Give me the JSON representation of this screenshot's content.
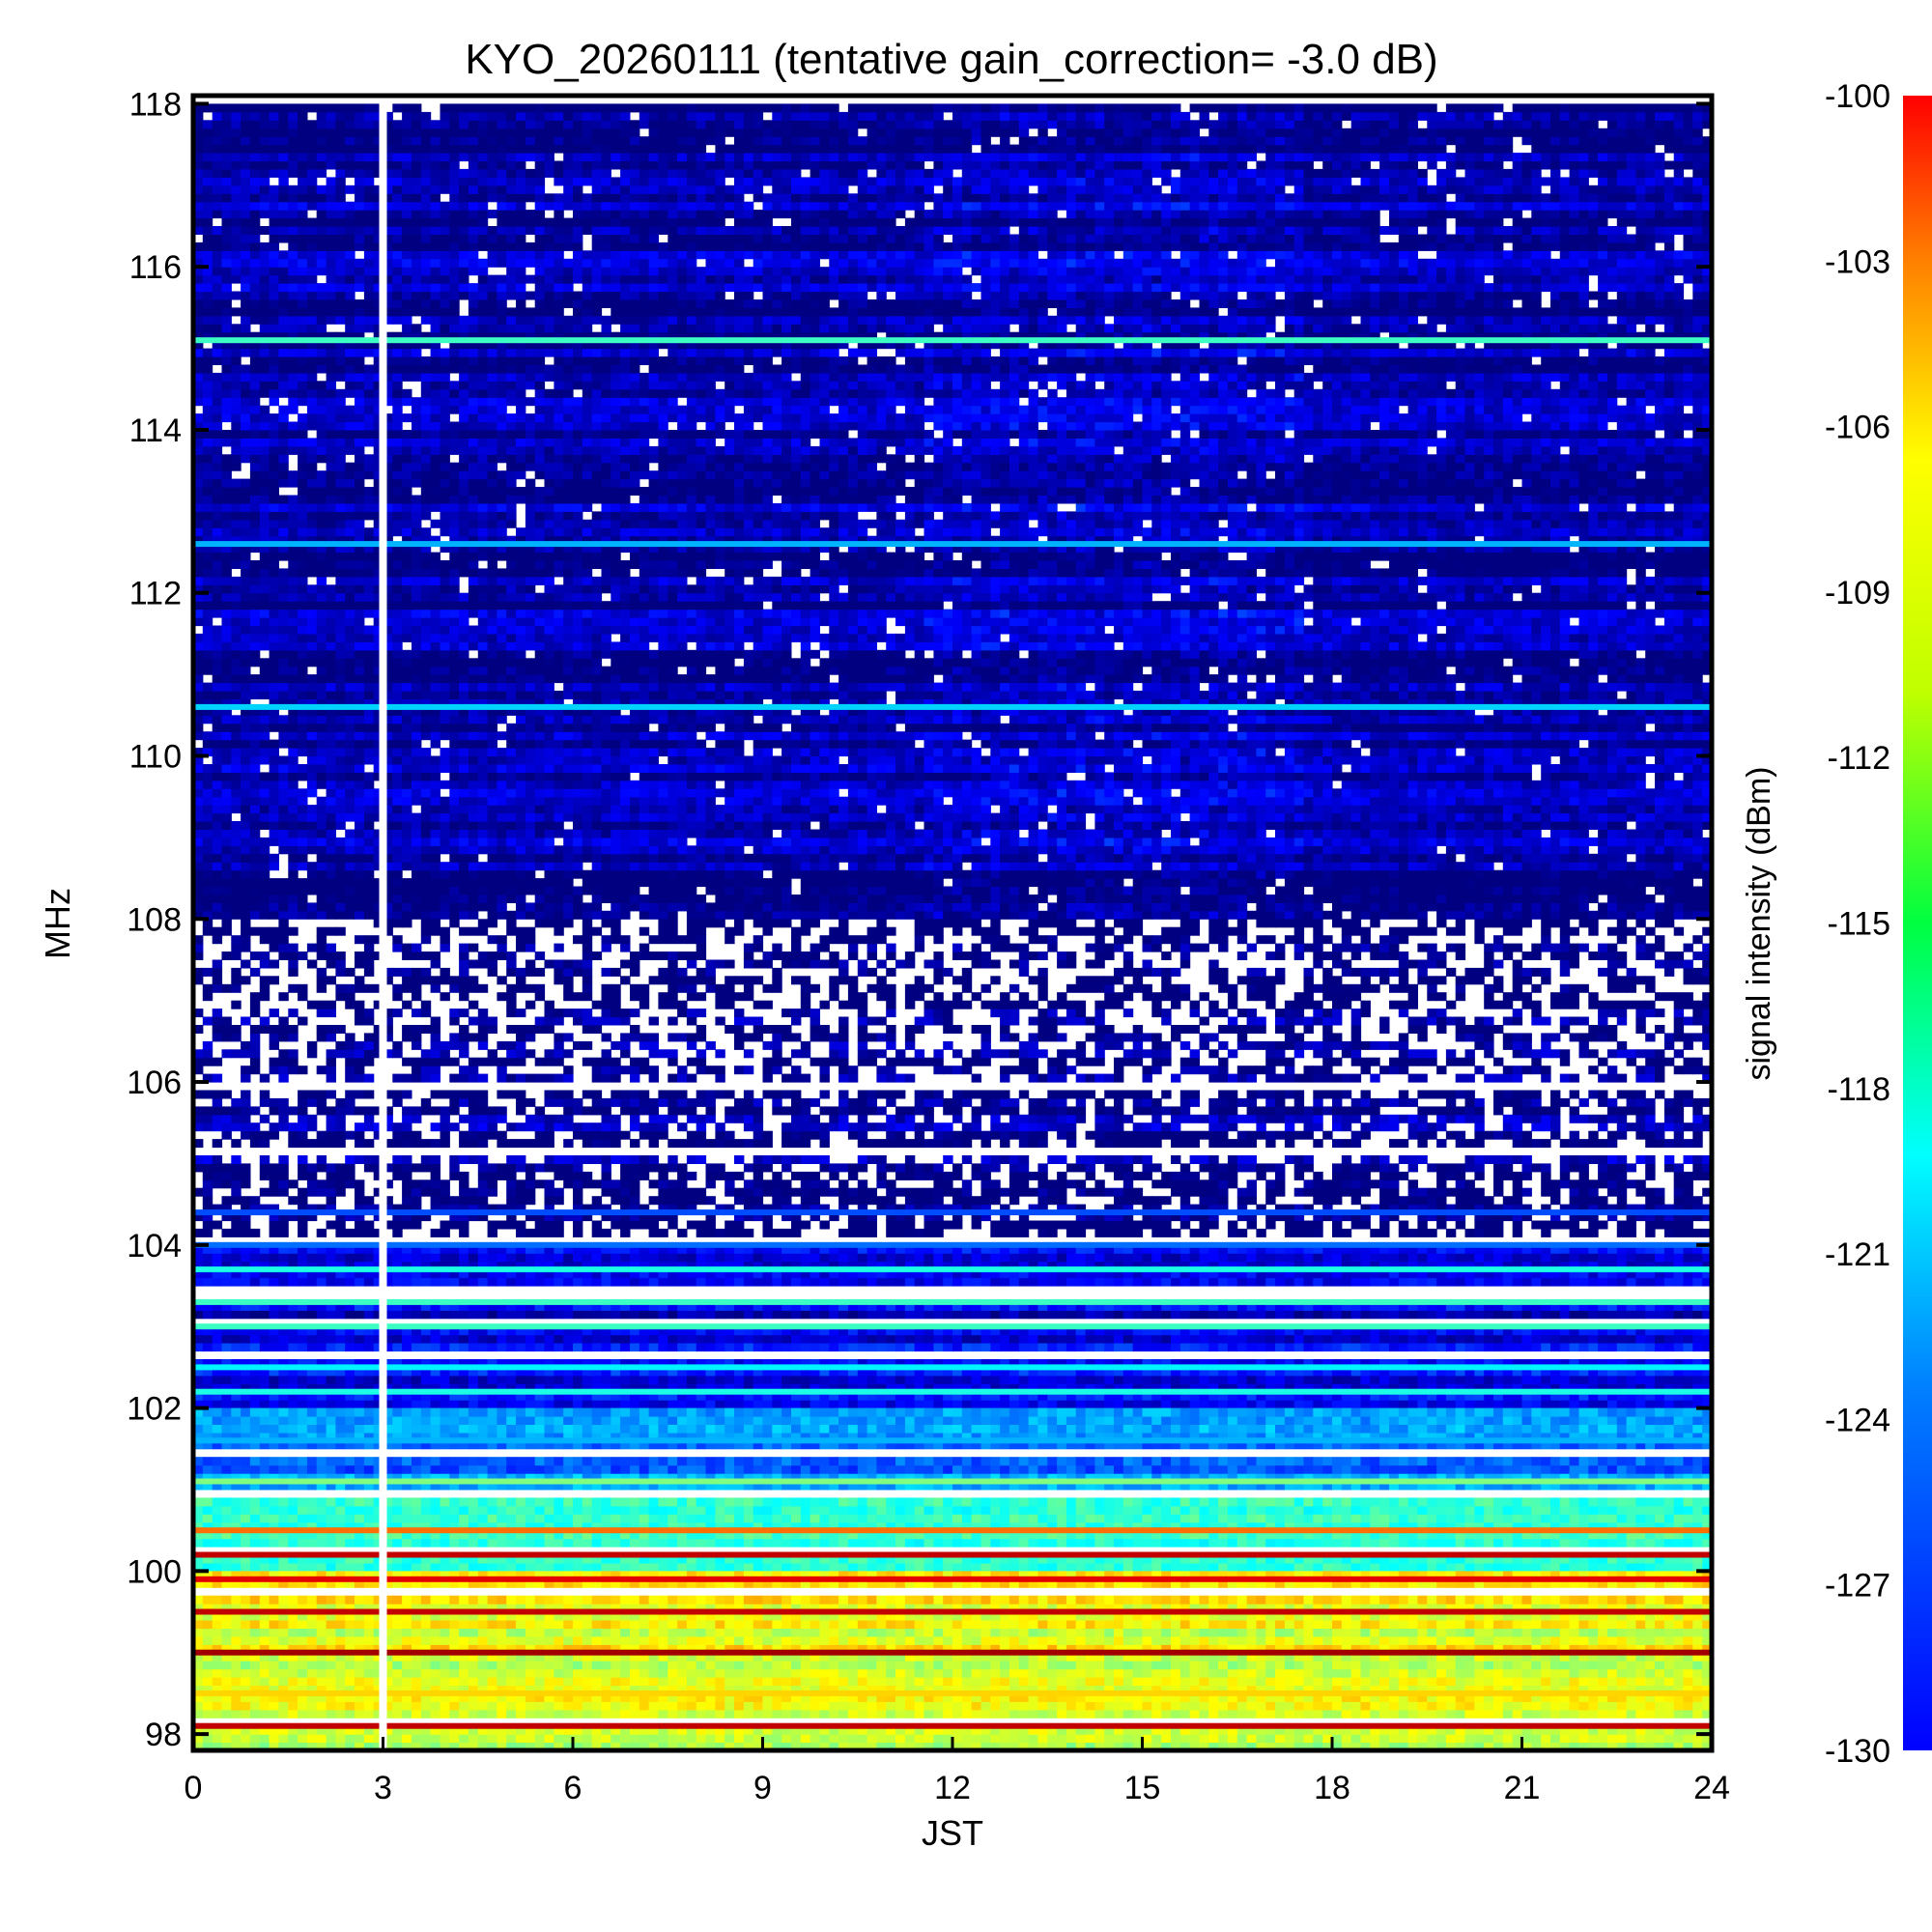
{
  "chart_data": {
    "type": "heatmap",
    "title": "KYO_20260111 (tentative gain_correction= -3.0 dB)",
    "xlabel": "JST",
    "ylabel": "MHz",
    "xlim": [
      0,
      24
    ],
    "ylim": [
      97.8,
      118.1
    ],
    "x_ticks": [
      0,
      3,
      6,
      9,
      12,
      15,
      18,
      21,
      24
    ],
    "y_ticks": [
      98,
      100,
      102,
      104,
      106,
      108,
      110,
      112,
      114,
      116,
      118
    ],
    "colorbar": {
      "label": "signal intensity (dBm)",
      "range": [
        -130,
        -100
      ],
      "ticks": [
        -100,
        -103,
        -106,
        -109,
        -112,
        -115,
        -118,
        -121,
        -124,
        -127,
        -130
      ],
      "colormap": "jet"
    },
    "data_gap": {
      "jst": 3.0,
      "note_color": "#ffffff"
    },
    "bands": [
      {
        "freq_from": 108.0,
        "freq_to": 118.0,
        "level_dbm": -129.0,
        "texture": "noise"
      },
      {
        "freq_from": 106.0,
        "freq_to": 108.0,
        "level_dbm": -130.0,
        "texture": "sparse"
      },
      {
        "freq_from": 104.0,
        "freq_to": 106.0,
        "level_dbm": -129.5,
        "texture": "sparse-lines"
      },
      {
        "freq_from": 102.0,
        "freq_to": 104.0,
        "level_dbm": -127.0,
        "texture": "lines"
      },
      {
        "freq_from": 101.0,
        "freq_to": 102.0,
        "level_dbm": -123.0,
        "texture": "lines"
      },
      {
        "freq_from": 100.0,
        "freq_to": 101.0,
        "level_dbm": -118.0,
        "texture": "lines"
      },
      {
        "freq_from": 97.8,
        "freq_to": 100.0,
        "level_dbm": -112.0,
        "texture": "lines"
      }
    ],
    "stations": [
      {
        "freq": 115.1,
        "level_dbm": -117
      },
      {
        "freq": 112.6,
        "level_dbm": -121
      },
      {
        "freq": 110.6,
        "level_dbm": -120
      },
      {
        "freq": 104.4,
        "level_dbm": -124
      },
      {
        "freq": 104.0,
        "level_dbm": -123
      },
      {
        "freq": 103.7,
        "level_dbm": -118
      },
      {
        "freq": 103.3,
        "level_dbm": -117
      },
      {
        "freq": 103.0,
        "level_dbm": -117
      },
      {
        "freq": 102.5,
        "level_dbm": -119
      },
      {
        "freq": 102.2,
        "level_dbm": -118
      },
      {
        "freq": 101.6,
        "level_dbm": -121
      },
      {
        "freq": 101.1,
        "level_dbm": -115
      },
      {
        "freq": 100.5,
        "level_dbm": -107
      },
      {
        "freq": 100.2,
        "level_dbm": -102
      },
      {
        "freq": 99.9,
        "level_dbm": -103
      },
      {
        "freq": 99.5,
        "level_dbm": -102
      },
      {
        "freq": 99.0,
        "level_dbm": -101
      },
      {
        "freq": 98.5,
        "level_dbm": -110
      },
      {
        "freq": 98.1,
        "level_dbm": -102
      }
    ]
  }
}
